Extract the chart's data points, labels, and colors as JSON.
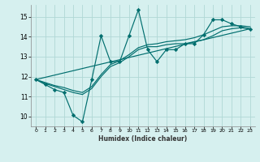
{
  "xlabel": "Humidex (Indice chaleur)",
  "bg_color": "#d6f0ef",
  "grid_color": "#b0d8d5",
  "line_color": "#006e6e",
  "xlim": [
    -0.5,
    23.5
  ],
  "ylim": [
    9.5,
    15.6
  ],
  "yticks": [
    10,
    11,
    12,
    13,
    14,
    15
  ],
  "xticks": [
    0,
    1,
    2,
    3,
    4,
    5,
    6,
    7,
    8,
    9,
    10,
    11,
    12,
    13,
    14,
    15,
    16,
    17,
    18,
    19,
    20,
    21,
    22,
    23
  ],
  "jagged_x": [
    0,
    1,
    2,
    3,
    4,
    5,
    6,
    7,
    8,
    9,
    10,
    11,
    12,
    13,
    14,
    15,
    16,
    17,
    18,
    19,
    20,
    21,
    22,
    23
  ],
  "jagged_y": [
    11.85,
    11.6,
    11.35,
    11.2,
    10.05,
    9.73,
    11.85,
    14.05,
    12.75,
    12.75,
    14.05,
    15.35,
    13.35,
    12.75,
    13.35,
    13.35,
    13.65,
    13.65,
    14.1,
    14.85,
    14.85,
    14.65,
    14.5,
    14.4
  ],
  "smooth1_x": [
    0,
    1,
    2,
    3,
    4,
    5,
    6,
    7,
    8,
    9,
    10,
    11,
    12,
    13,
    14,
    15,
    16,
    17,
    18,
    19,
    20,
    21,
    22,
    23
  ],
  "smooth1_y": [
    11.85,
    11.65,
    11.5,
    11.35,
    11.2,
    11.1,
    11.4,
    12.0,
    12.5,
    12.7,
    13.0,
    13.35,
    13.5,
    13.5,
    13.6,
    13.65,
    13.65,
    13.75,
    13.85,
    14.05,
    14.3,
    14.4,
    14.45,
    14.4
  ],
  "smooth2_x": [
    0,
    1,
    2,
    3,
    4,
    5,
    6,
    7,
    8,
    9,
    10,
    11,
    12,
    13,
    14,
    15,
    16,
    17,
    18,
    19,
    20,
    21,
    22,
    23
  ],
  "smooth2_y": [
    11.85,
    11.7,
    11.55,
    11.45,
    11.3,
    11.2,
    11.5,
    12.1,
    12.6,
    12.8,
    13.1,
    13.45,
    13.6,
    13.65,
    13.75,
    13.8,
    13.85,
    13.95,
    14.1,
    14.3,
    14.5,
    14.55,
    14.55,
    14.5
  ],
  "trend_x": [
    0,
    23
  ],
  "trend_y": [
    11.85,
    14.4
  ]
}
